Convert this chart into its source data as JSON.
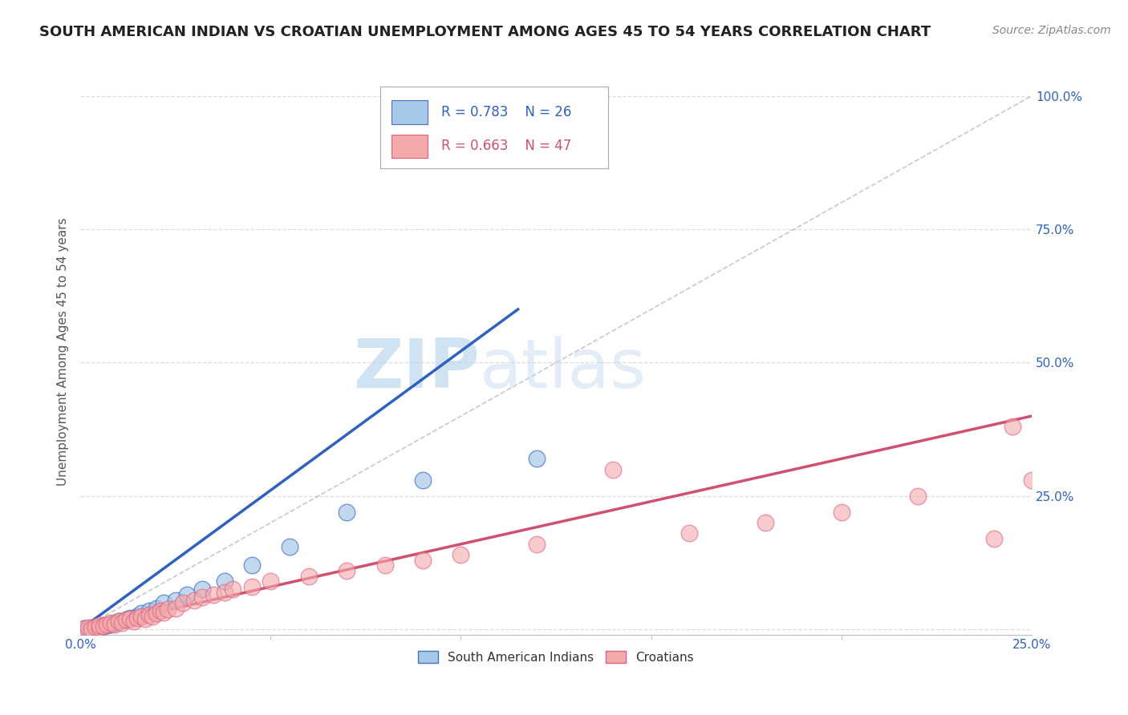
{
  "title": "SOUTH AMERICAN INDIAN VS CROATIAN UNEMPLOYMENT AMONG AGES 45 TO 54 YEARS CORRELATION CHART",
  "source": "Source: ZipAtlas.com",
  "ylabel": "Unemployment Among Ages 45 to 54 years",
  "yticks": [
    0.0,
    0.25,
    0.5,
    0.75,
    1.0
  ],
  "ytick_labels": [
    "",
    "25.0%",
    "50.0%",
    "75.0%",
    "100.0%"
  ],
  "xlim": [
    0.0,
    0.25
  ],
  "ylim": [
    -0.01,
    1.05
  ],
  "legend_blue_r": "R = 0.783",
  "legend_blue_n": "N = 26",
  "legend_pink_r": "R = 0.663",
  "legend_pink_n": "N = 47",
  "legend_label_blue": "South American Indians",
  "legend_label_pink": "Croatians",
  "blue_color": "#A8C8E8",
  "pink_color": "#F4AAAA",
  "blue_edge_color": "#4472C4",
  "pink_edge_color": "#E06080",
  "blue_line_color": "#3060C0",
  "pink_line_color": "#D05070",
  "grid_color": "#DDDDDD",
  "background_color": "#FFFFFF",
  "blue_scatter_x": [
    0.001,
    0.002,
    0.003,
    0.004,
    0.005,
    0.006,
    0.007,
    0.008,
    0.009,
    0.01,
    0.012,
    0.013,
    0.015,
    0.016,
    0.018,
    0.02,
    0.022,
    0.025,
    0.028,
    0.032,
    0.038,
    0.045,
    0.055,
    0.07,
    0.09,
    0.12
  ],
  "blue_scatter_y": [
    0.002,
    0.001,
    0.003,
    0.005,
    0.004,
    0.006,
    0.008,
    0.01,
    0.012,
    0.015,
    0.018,
    0.022,
    0.025,
    0.03,
    0.035,
    0.04,
    0.05,
    0.055,
    0.065,
    0.075,
    0.09,
    0.12,
    0.155,
    0.22,
    0.28,
    0.32
  ],
  "pink_scatter_x": [
    0.001,
    0.002,
    0.003,
    0.004,
    0.005,
    0.005,
    0.006,
    0.007,
    0.008,
    0.009,
    0.01,
    0.011,
    0.012,
    0.013,
    0.014,
    0.015,
    0.016,
    0.017,
    0.018,
    0.019,
    0.02,
    0.021,
    0.022,
    0.023,
    0.025,
    0.027,
    0.03,
    0.032,
    0.035,
    0.038,
    0.04,
    0.045,
    0.05,
    0.06,
    0.07,
    0.08,
    0.09,
    0.1,
    0.12,
    0.14,
    0.16,
    0.18,
    0.2,
    0.22,
    0.24,
    0.245,
    0.25
  ],
  "pink_scatter_y": [
    0.002,
    0.003,
    0.001,
    0.005,
    0.004,
    0.008,
    0.006,
    0.01,
    0.012,
    0.009,
    0.015,
    0.013,
    0.018,
    0.02,
    0.016,
    0.022,
    0.025,
    0.02,
    0.028,
    0.025,
    0.03,
    0.035,
    0.032,
    0.038,
    0.04,
    0.05,
    0.055,
    0.06,
    0.065,
    0.07,
    0.075,
    0.08,
    0.09,
    0.1,
    0.11,
    0.12,
    0.13,
    0.14,
    0.16,
    0.3,
    0.18,
    0.2,
    0.22,
    0.25,
    0.17,
    0.38,
    0.28
  ],
  "blue_line_x": [
    0.0,
    0.115
  ],
  "blue_line_y": [
    0.0,
    0.6
  ],
  "pink_line_x": [
    0.0,
    0.25
  ],
  "pink_line_y": [
    0.0,
    0.4
  ],
  "ref_line_x": [
    0.0,
    0.25
  ],
  "ref_line_y": [
    0.0,
    1.0
  ],
  "watermark_zip": "ZIP",
  "watermark_atlas": "atlas",
  "title_fontsize": 13,
  "axis_label_fontsize": 11,
  "tick_fontsize": 11,
  "source_fontsize": 10
}
